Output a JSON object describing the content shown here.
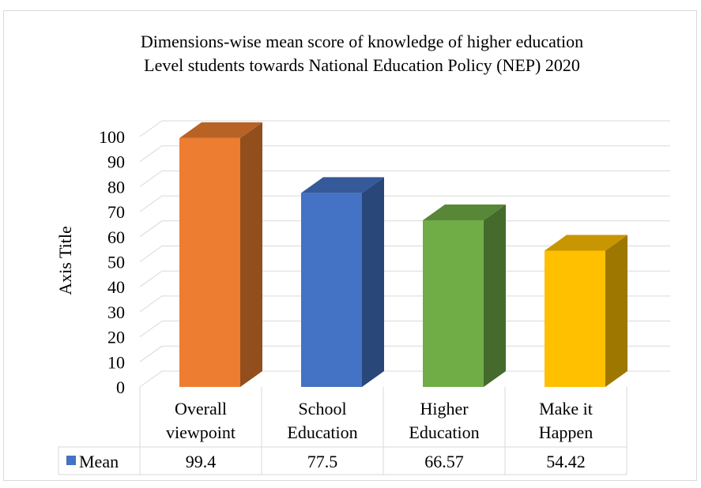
{
  "chart_data": {
    "type": "bar",
    "title_lines": [
      "Dimensions-wise mean score of knowledge of higher education",
      "Level students towards National Education Policy (NEP) 2020"
    ],
    "ylabel": "Axis Title",
    "ylim": [
      0,
      100
    ],
    "yticks": [
      0,
      10,
      20,
      30,
      40,
      50,
      60,
      70,
      80,
      90,
      100
    ],
    "grid": true,
    "categories": [
      [
        "Overall",
        "viewpoint"
      ],
      [
        "School",
        "Education"
      ],
      [
        "Higher",
        "Education"
      ],
      [
        "Make it",
        "Happen"
      ]
    ],
    "series": [
      {
        "name": "Mean",
        "values": [
          99.4,
          77.5,
          66.57,
          54.42
        ],
        "value_labels": [
          "99.4",
          "77.5",
          "66.57",
          "54.42"
        ],
        "colors": [
          "#ED7D31",
          "#4472C4",
          "#70AD47",
          "#FFC000"
        ]
      }
    ],
    "data_table": true,
    "legend_key_color": "#4472C4"
  }
}
